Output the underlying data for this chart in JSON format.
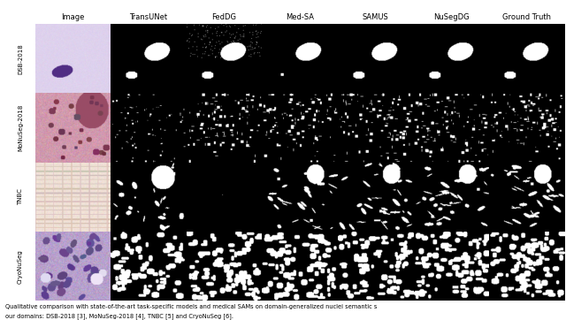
{
  "col_headers": [
    "Image",
    "TransUNet",
    "FedDG",
    "Med-SA",
    "SAMUS",
    "NuSegDG",
    "Ground Truth"
  ],
  "row_labels": [
    "DSB-2018",
    "MoNuSeg-2018",
    "TNBC",
    "CryoNuSeg"
  ],
  "n_rows": 4,
  "n_cols": 7,
  "caption_line1": "Qualitative comparison with state-of-the-art task-specific models and medical SAMs on domain-generalized nuclei semantic s",
  "caption_line2": "our domains: DSB-2018 [3], MoNuSeg-2018 [4], TNBC [5] and CryoNuSeg [6].",
  "fig_width": 6.4,
  "fig_height": 3.62,
  "bg_color": "#ffffff",
  "header_fontsize": 6.0,
  "label_fontsize": 5.0,
  "caption_fontsize": 4.8
}
